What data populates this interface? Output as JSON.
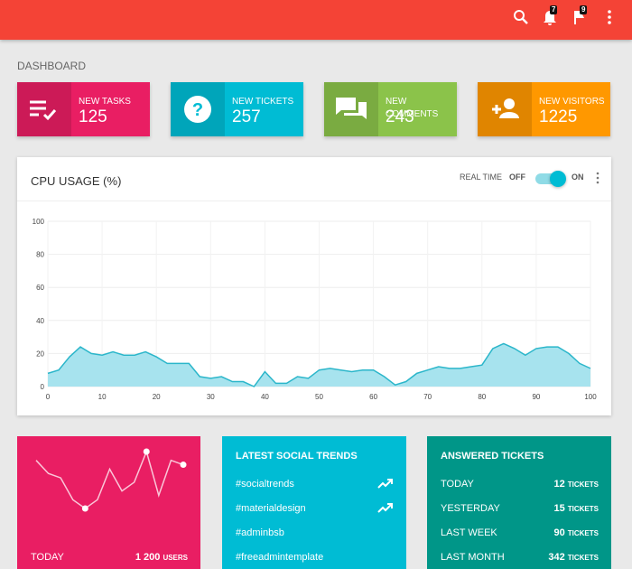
{
  "header": {
    "notification_badge": "7",
    "flag_badge": "9"
  },
  "page_title": "DASHBOARD",
  "info_boxes": [
    {
      "label": "NEW TASKS",
      "value": 125,
      "color": "#e91e63"
    },
    {
      "label": "NEW TICKETS",
      "value": 257,
      "color": "#00bcd4"
    },
    {
      "label": "NEW COMMENTS",
      "value": 243,
      "color": "#8bc34a"
    },
    {
      "label": "NEW VISITORS",
      "value": 1225,
      "color": "#ff9800"
    }
  ],
  "cpu_card": {
    "real_time": "REAL TIME",
    "off": "OFF",
    "on": "ON"
  },
  "chart_data": {
    "type": "area",
    "title": "CPU USAGE (%)",
    "x": [
      0,
      2,
      4,
      6,
      8,
      10,
      12,
      14,
      16,
      18,
      20,
      22,
      24,
      26,
      28,
      30,
      32,
      34,
      36,
      38,
      40,
      42,
      44,
      46,
      48,
      50,
      52,
      54,
      56,
      58,
      60,
      62,
      64,
      66,
      68,
      70,
      72,
      74,
      76,
      78,
      80,
      82,
      84,
      86,
      88,
      90,
      92,
      94,
      96,
      98,
      100
    ],
    "series": [
      {
        "color": "#2bb6ca",
        "fill": "#a7e3ee",
        "values": [
          8,
          10,
          18,
          24,
          20,
          19,
          21,
          19,
          19,
          21,
          18,
          14,
          14,
          14,
          6,
          5,
          6,
          3,
          3,
          0,
          9,
          2,
          2,
          6,
          5,
          10,
          11,
          10,
          9,
          10,
          10,
          6,
          1,
          3,
          8,
          10,
          12,
          11,
          11,
          12,
          13,
          23,
          26,
          23,
          19,
          23,
          24,
          24,
          20,
          14,
          11
        ]
      }
    ],
    "xlim": [
      0,
      100
    ],
    "xticks": [
      0,
      10,
      20,
      30,
      40,
      50,
      60,
      70,
      80,
      90,
      100
    ],
    "ylim": [
      0,
      100
    ],
    "yticks": [
      0,
      20,
      40,
      60,
      80,
      100
    ],
    "grid": true
  },
  "users_card": {
    "sparkline": [
      12,
      9,
      8,
      3,
      1,
      3,
      10,
      5,
      7,
      14,
      4,
      12,
      11
    ],
    "label": "TODAY",
    "count": "1 200",
    "unit": "USERS"
  },
  "social_trends": {
    "title": "LATEST SOCIAL TRENDS",
    "items": [
      {
        "tag": "#socialtrends",
        "trending": true
      },
      {
        "tag": "#materialdesign",
        "trending": true
      },
      {
        "tag": "#adminbsb",
        "trending": false
      },
      {
        "tag": "#freeadmintemplate",
        "trending": false
      }
    ]
  },
  "answered_tickets": {
    "title": "ANSWERED TICKETS",
    "rows": [
      {
        "label": "TODAY",
        "count": 12,
        "unit": "TICKETS"
      },
      {
        "label": "YESTERDAY",
        "count": 15,
        "unit": "TICKETS"
      },
      {
        "label": "LAST WEEK",
        "count": 90,
        "unit": "TICKETS"
      },
      {
        "label": "LAST MONTH",
        "count": 342,
        "unit": "TICKETS"
      }
    ]
  }
}
